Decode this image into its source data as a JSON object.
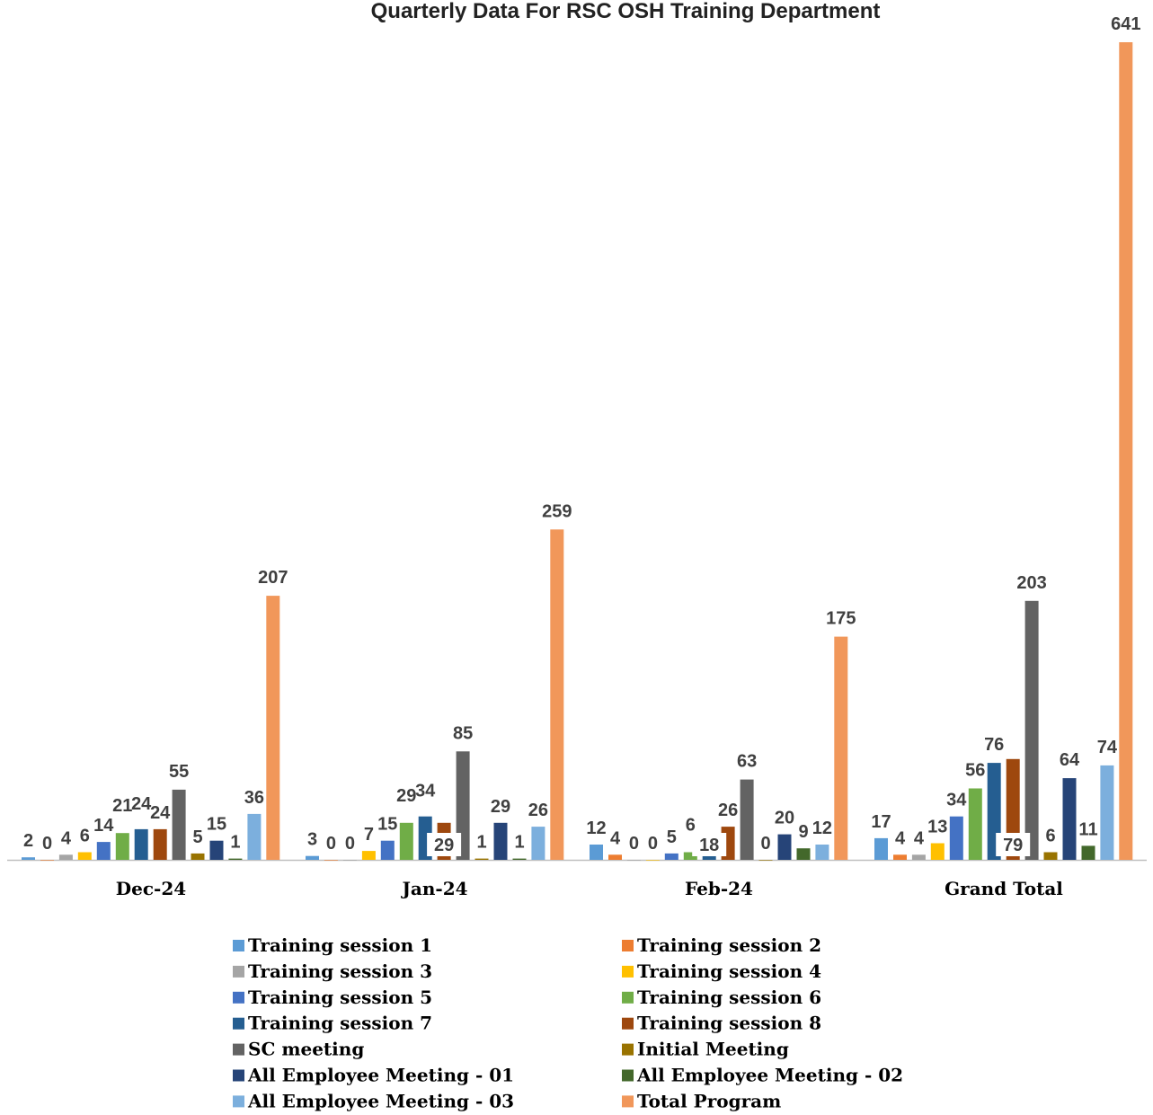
{
  "chart_data": {
    "type": "bar",
    "title": "Quarterly Data For RSC OSH Training Department",
    "categories": [
      "Dec-24",
      "Jan-24",
      "Feb-24",
      "Grand Total"
    ],
    "series": [
      {
        "name": "Training session 1",
        "color": "#5B9BD5",
        "values": [
          2,
          3,
          12,
          17
        ]
      },
      {
        "name": "Training session 2",
        "color": "#ED7D31",
        "values": [
          0,
          0,
          4,
          4
        ]
      },
      {
        "name": "Training session 3",
        "color": "#A5A5A5",
        "values": [
          4,
          0,
          0,
          4
        ]
      },
      {
        "name": "Training session 4",
        "color": "#FFC000",
        "values": [
          6,
          7,
          0,
          13
        ]
      },
      {
        "name": "Training session 5",
        "color": "#4472C4",
        "values": [
          14,
          15,
          5,
          34
        ]
      },
      {
        "name": "Training session 6",
        "color": "#70AD47",
        "values": [
          21,
          29,
          6,
          56
        ]
      },
      {
        "name": "Training session 7",
        "color": "#255E91",
        "values": [
          24,
          34,
          18,
          76
        ]
      },
      {
        "name": "Training session 8",
        "color": "#9E480E",
        "values": [
          24,
          29,
          26,
          79
        ]
      },
      {
        "name": "SC meeting",
        "color": "#636363",
        "values": [
          55,
          85,
          63,
          203
        ]
      },
      {
        "name": "Initial Meeting",
        "color": "#997300",
        "values": [
          5,
          1,
          0,
          6
        ]
      },
      {
        "name": "All Employee Meeting - 01",
        "color": "#264478",
        "values": [
          15,
          29,
          20,
          64
        ]
      },
      {
        "name": "All Employee Meeting - 02",
        "color": "#43682B",
        "values": [
          1,
          1,
          9,
          11
        ]
      },
      {
        "name": "All Employee Meeting - 03",
        "color": "#7CAFDD",
        "values": [
          36,
          26,
          12,
          74
        ]
      },
      {
        "name": "Total Program",
        "color": "#F1975A",
        "values": [
          207,
          259,
          175,
          641
        ]
      }
    ],
    "ylim": [
      0,
      641
    ],
    "grid": false,
    "legend": "bottom"
  }
}
